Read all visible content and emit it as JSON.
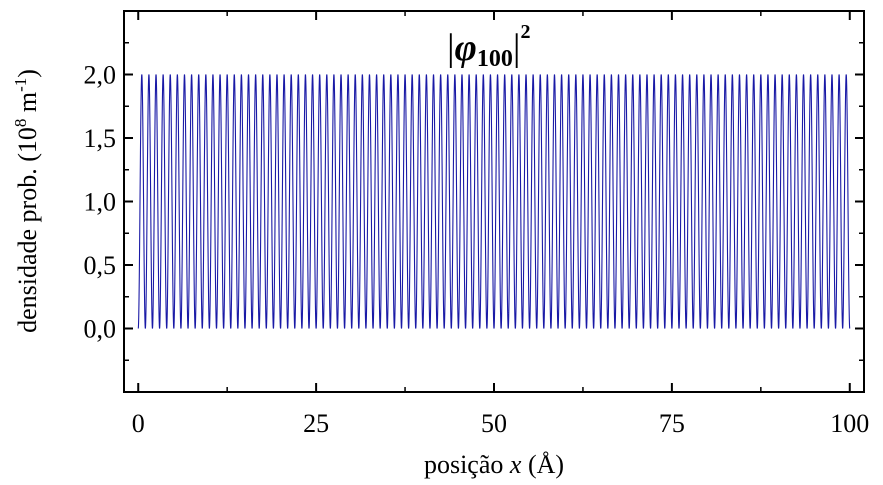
{
  "chart_data": {
    "type": "line",
    "title_parts": {
      "open": "|",
      "symbol": "φ",
      "subscript": "100",
      "close": "|",
      "superscript": "2"
    },
    "xlabel_parts": {
      "before": "posição ",
      "var": "x",
      "after": " (Å)"
    },
    "ylabel_parts": {
      "before": "densidade prob. (10",
      "exp1": "8",
      "mid": " m",
      "exp2": "-1",
      "after": ")"
    },
    "xlim": [
      -2,
      102
    ],
    "ylim": [
      -0.5,
      2.5
    ],
    "x_ticks": [
      0,
      25,
      50,
      75,
      100
    ],
    "x_tick_labels": [
      "0",
      "25",
      "50",
      "75",
      "100"
    ],
    "y_ticks": [
      0.0,
      0.5,
      1.0,
      1.5,
      2.0
    ],
    "y_tick_labels": [
      "0,0",
      "0,5",
      "1,0",
      "1,5",
      "2,0"
    ],
    "grid": false,
    "series": [
      {
        "function": "(2/L)·sin²(nπx/L)",
        "n": 100,
        "L": 100,
        "x_range": [
          0,
          100
        ],
        "y_max": 2.0,
        "color": "#1a1aa6"
      }
    ]
  }
}
